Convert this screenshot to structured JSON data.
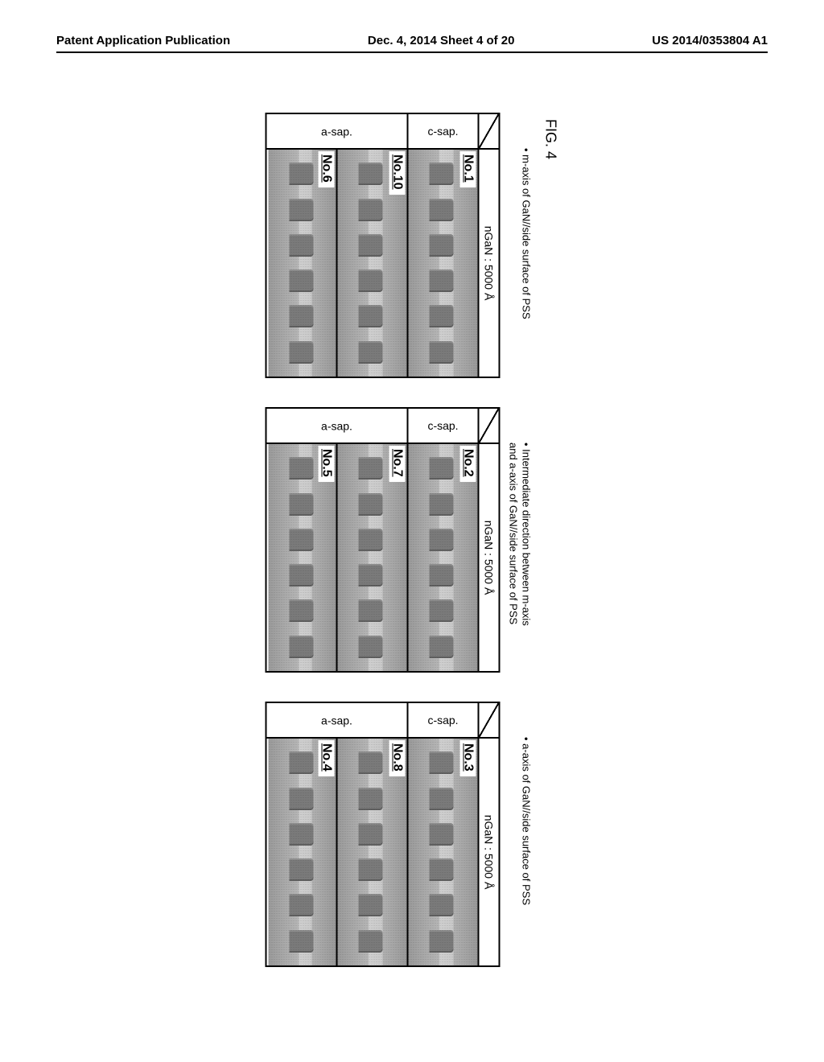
{
  "header": {
    "left": "Patent Application Publication",
    "center": "Dec. 4, 2014  Sheet 4 of 20",
    "right": "US 2014/0353804 A1"
  },
  "figure": {
    "label": "FIG. 4",
    "ngan_header": "nGaN : 5000 Å",
    "side_labels": {
      "csap": "c-sap.",
      "asap": "a-sap."
    },
    "panels": [
      {
        "caption": "• m-axis of GaN//side surface of PSS",
        "rows": [
          {
            "side": "csap",
            "cells": [
              "No.1"
            ]
          },
          {
            "side": "asap",
            "cells": [
              "No.10",
              "No.6"
            ]
          }
        ]
      },
      {
        "caption": "• Intermediate direction between m-axis\n  and a-axis of GaN//side surface of PSS",
        "rows": [
          {
            "side": "csap",
            "cells": [
              "No.2"
            ]
          },
          {
            "side": "asap",
            "cells": [
              "No.7",
              "No.5"
            ]
          }
        ]
      },
      {
        "caption": "• a-axis of GaN//side surface of PSS",
        "rows": [
          {
            "side": "csap",
            "cells": [
              "No.3"
            ]
          },
          {
            "side": "asap",
            "cells": [
              "No.8",
              "No.4"
            ]
          }
        ]
      }
    ]
  },
  "style": {
    "text_color": "#000000",
    "bg": "#ffffff",
    "border": "#000000",
    "fontsize_header": 15,
    "fontsize_fig": 18,
    "fontsize_caption": 13,
    "fontsize_cell_label": 16
  }
}
